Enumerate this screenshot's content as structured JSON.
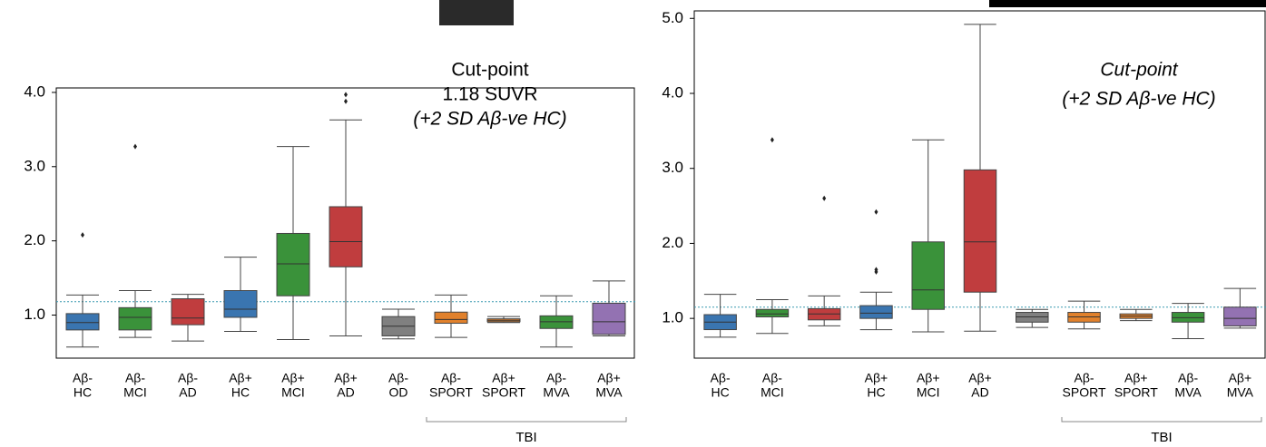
{
  "chart_data": [
    {
      "type": "box",
      "categories": [
        [
          "Aβ-",
          "HC"
        ],
        [
          "Aβ-",
          "MCI"
        ],
        [
          "Aβ-",
          "AD"
        ],
        [
          "Aβ+",
          "HC"
        ],
        [
          "Aβ+",
          "MCI"
        ],
        [
          "Aβ+",
          "AD"
        ],
        [
          "Aβ-",
          "OD"
        ],
        [
          "Aβ-",
          "SPORT"
        ],
        [
          "Aβ+",
          "SPORT"
        ],
        [
          "Aβ-",
          "MVA"
        ],
        [
          "Aβ+",
          "MVA"
        ]
      ],
      "boxes": [
        {
          "whislo": 0.57,
          "q1": 0.8,
          "med": 0.9,
          "q3": 1.02,
          "whishi": 1.27,
          "fliers": [
            2.08
          ],
          "color": "#3a75b0"
        },
        {
          "whislo": 0.7,
          "q1": 0.8,
          "med": 0.97,
          "q3": 1.1,
          "whishi": 1.33,
          "fliers": [
            3.27
          ],
          "color": "#3a923a"
        },
        {
          "whislo": 0.65,
          "q1": 0.87,
          "med": 0.96,
          "q3": 1.22,
          "whishi": 1.28,
          "fliers": [],
          "color": "#c03d3e"
        },
        {
          "whislo": 0.78,
          "q1": 0.97,
          "med": 1.08,
          "q3": 1.33,
          "whishi": 1.78,
          "fliers": [],
          "color": "#3a75b0"
        },
        {
          "whislo": 0.67,
          "q1": 1.26,
          "med": 1.69,
          "q3": 2.1,
          "whishi": 3.27,
          "fliers": [],
          "color": "#3a923a"
        },
        {
          "whislo": 0.72,
          "q1": 1.65,
          "med": 1.99,
          "q3": 2.46,
          "whishi": 3.63,
          "fliers": [
            3.88,
            3.97
          ],
          "color": "#c03d3e"
        },
        {
          "whislo": 0.68,
          "q1": 0.72,
          "med": 0.85,
          "q3": 0.98,
          "whishi": 1.08,
          "fliers": [],
          "color": "#808080"
        },
        {
          "whislo": 0.7,
          "q1": 0.89,
          "med": 0.94,
          "q3": 1.04,
          "whishi": 1.27,
          "fliers": [],
          "color": "#e1812c"
        },
        {
          "whislo": 0.9,
          "q1": 0.91,
          "med": 0.93,
          "q3": 0.95,
          "whishi": 0.98,
          "fliers": [],
          "color": "#e1812c"
        },
        {
          "whislo": 0.57,
          "q1": 0.82,
          "med": 0.91,
          "q3": 0.99,
          "whishi": 1.26,
          "fliers": [],
          "color": "#3a923a"
        },
        {
          "whislo": 0.72,
          "q1": 0.74,
          "med": 0.91,
          "q3": 1.16,
          "whishi": 1.46,
          "fliers": [],
          "color": "#9372b2"
        }
      ],
      "ylim": [
        0.42,
        4.06
      ],
      "yticks": [
        {
          "value": 1,
          "label": "1.0"
        },
        {
          "value": 2,
          "label": "2.0"
        },
        {
          "value": 3,
          "label": "3.0"
        },
        {
          "value": 4,
          "label": "4.0"
        }
      ],
      "cutpoint": 1.18,
      "annotation": [
        "Cut-point",
        "1.18 SUVR",
        "(+2 SD Aβ-ve HC)"
      ],
      "group_label": "TBI"
    },
    {
      "type": "box",
      "categories": [
        [
          "Aβ-",
          "HC"
        ],
        [
          "Aβ-",
          "MCI"
        ],
        null,
        [
          "Aβ+",
          "HC"
        ],
        [
          "Aβ+",
          "MCI"
        ],
        [
          "Aβ+",
          "AD"
        ],
        null,
        [
          "Aβ-",
          "SPORT"
        ],
        [
          "Aβ+",
          "SPORT"
        ],
        [
          "Aβ-",
          "MVA"
        ],
        [
          "Aβ+",
          "MVA"
        ]
      ],
      "boxes": [
        {
          "whislo": 0.75,
          "q1": 0.85,
          "med": 0.95,
          "q3": 1.05,
          "whishi": 1.32,
          "fliers": [],
          "color": "#3a75b0"
        },
        {
          "whislo": 0.8,
          "q1": 1.02,
          "med": 1.06,
          "q3": 1.12,
          "whishi": 1.25,
          "fliers": [
            3.38
          ],
          "color": "#3a923a"
        },
        {
          "whislo": 0.9,
          "q1": 0.98,
          "med": 1.06,
          "q3": 1.13,
          "whishi": 1.3,
          "fliers": [
            2.6
          ],
          "color": "#c03d3e"
        },
        {
          "whislo": 0.85,
          "q1": 1.0,
          "med": 1.07,
          "q3": 1.17,
          "whishi": 1.35,
          "fliers": [
            1.62,
            1.65,
            2.42
          ],
          "color": "#3a75b0"
        },
        {
          "whislo": 0.82,
          "q1": 1.12,
          "med": 1.38,
          "q3": 2.02,
          "whishi": 3.38,
          "fliers": [],
          "color": "#3a923a"
        },
        {
          "whislo": 0.83,
          "q1": 1.35,
          "med": 2.02,
          "q3": 2.98,
          "whishi": 4.92,
          "fliers": [],
          "color": "#c03d3e"
        },
        {
          "whislo": 0.88,
          "q1": 0.95,
          "med": 1.02,
          "q3": 1.08,
          "whishi": 1.12,
          "fliers": [],
          "color": "#808080"
        },
        {
          "whislo": 0.86,
          "q1": 0.95,
          "med": 1.02,
          "q3": 1.08,
          "whishi": 1.23,
          "fliers": [],
          "color": "#e1812c"
        },
        {
          "whislo": 0.97,
          "q1": 1.0,
          "med": 1.03,
          "q3": 1.06,
          "whishi": 1.12,
          "fliers": [],
          "color": "#e1812c"
        },
        {
          "whislo": 0.73,
          "q1": 0.95,
          "med": 1.01,
          "q3": 1.08,
          "whishi": 1.2,
          "fliers": [],
          "color": "#3a923a"
        },
        {
          "whislo": 0.87,
          "q1": 0.9,
          "med": 1.0,
          "q3": 1.15,
          "whishi": 1.4,
          "fliers": [],
          "color": "#9372b2"
        }
      ],
      "ylim": [
        0.47,
        5.1
      ],
      "yticks": [
        {
          "value": 1,
          "label": "1.0"
        },
        {
          "value": 2,
          "label": "2.0"
        },
        {
          "value": 3,
          "label": "3.0"
        },
        {
          "value": 4,
          "label": "4.0"
        },
        {
          "value": 5,
          "label": "5.0"
        }
      ],
      "cutpoint": 1.15,
      "annotation": [
        "Cut-point",
        "(+2 SD Aβ-ve HC)"
      ],
      "group_label": "TBI"
    }
  ]
}
